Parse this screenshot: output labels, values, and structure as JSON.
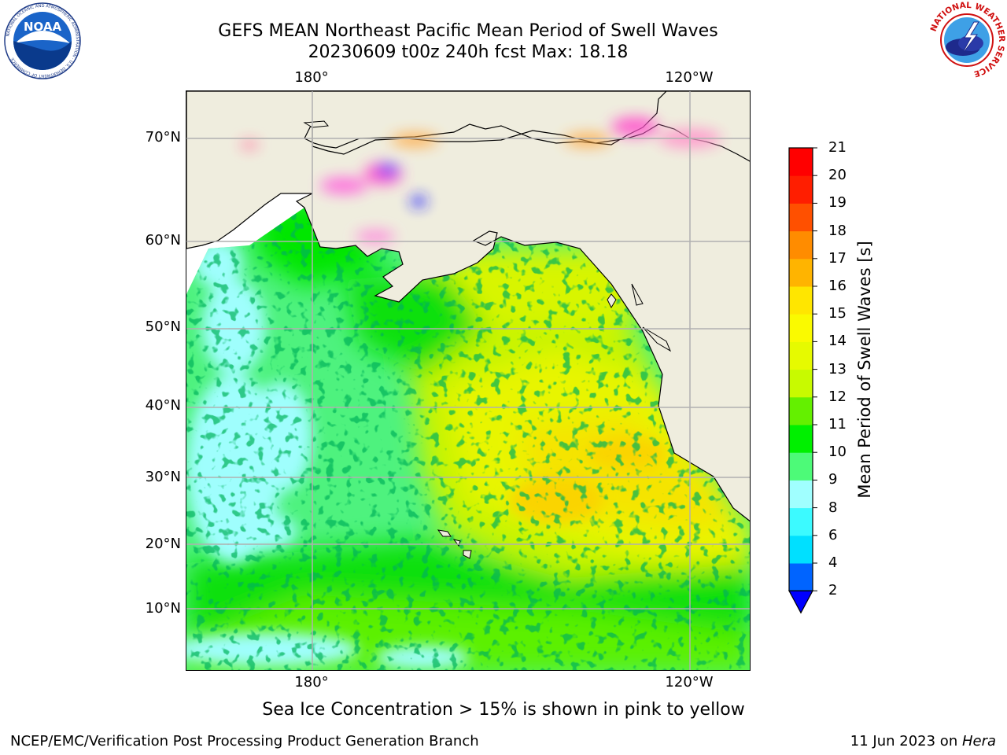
{
  "header": {
    "title_line1": "GEFS MEAN Northeast Pacific Mean Period of Swell Waves",
    "title_line2": "20230609 t00z 240h fcst   Max: 18.18"
  },
  "logos": {
    "noaa": {
      "name": "noaa-logo",
      "text": "NOAA",
      "ring_text": "NATIONAL OCEANIC AND ATMOSPHERIC ADMINISTRATION · U.S. DEPARTMENT OF COMMERCE"
    },
    "nws": {
      "name": "nws-logo",
      "ring_text": "NATIONAL WEATHER SERVICE"
    }
  },
  "map": {
    "lon_labels_top": [
      "180°",
      "120°W"
    ],
    "lon_labels_bottom": [
      "180°",
      "120°W"
    ],
    "lat_labels": [
      "70°N",
      "60°N",
      "50°N",
      "40°N",
      "30°N",
      "20°N",
      "10°N"
    ],
    "land_color": "#efedde",
    "grid_color": "#b0b0b0"
  },
  "colorbar": {
    "title": "Mean Period of Swell Waves [s]",
    "ticks": [
      "2",
      "4",
      "6",
      "8",
      "9",
      "10",
      "11",
      "12",
      "13",
      "14",
      "15",
      "16",
      "17",
      "18",
      "19",
      "20",
      "21"
    ],
    "colors": [
      "#0064ff",
      "#00e0ff",
      "#3cfaff",
      "#a0ffff",
      "#4dfa78",
      "#00f000",
      "#64f000",
      "#c8fa00",
      "#e6fa00",
      "#fafa00",
      "#ffe600",
      "#ffb400",
      "#ff8c00",
      "#ff5000",
      "#ff1e00",
      "#ff0000"
    ],
    "under_color": "#0000ff"
  },
  "caption": "Sea Ice Concentration > 15% is shown in pink to yellow",
  "footer": {
    "left": "NCEP/EMC/Verification Post Processing Product Generation Branch",
    "right_date": "11 Jun 2023 on ",
    "right_host": "Hera"
  }
}
